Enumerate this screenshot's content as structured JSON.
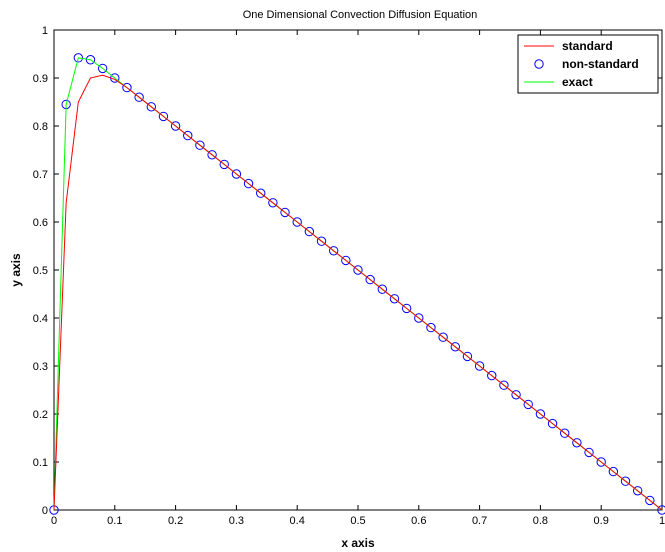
{
  "chart_data": {
    "type": "line",
    "title": "One Dimensional Convection Diffusion Equation",
    "xlabel": "x axis",
    "ylabel": "y axis",
    "xlim": [
      0,
      1
    ],
    "ylim": [
      0,
      1
    ],
    "xticks": [
      "0",
      "0.1",
      "0.2",
      "0.3",
      "0.4",
      "0.5",
      "0.6",
      "0.7",
      "0.8",
      "0.9",
      "1"
    ],
    "yticks": [
      "0",
      "0.1",
      "0.2",
      "0.3",
      "0.4",
      "0.5",
      "0.6",
      "0.7",
      "0.8",
      "0.9",
      "1"
    ],
    "grid": false,
    "legend_position": "top-right",
    "series": [
      {
        "name": "standard",
        "style": "line",
        "color": "#ff0000",
        "x": [
          0,
          0.02,
          0.04,
          0.06,
          0.08,
          0.1,
          0.12,
          0.14,
          0.16,
          0.18,
          0.2,
          0.22,
          0.24,
          0.26,
          0.28,
          0.3,
          0.32,
          0.34,
          0.36,
          0.38,
          0.4,
          0.42,
          0.44,
          0.46,
          0.48,
          0.5,
          0.52,
          0.54,
          0.56,
          0.58,
          0.6,
          0.62,
          0.64,
          0.66,
          0.68,
          0.7,
          0.72,
          0.74,
          0.76,
          0.78,
          0.8,
          0.82,
          0.84,
          0.86,
          0.88,
          0.9,
          0.92,
          0.94,
          0.96,
          0.98,
          1
        ],
        "y": [
          0,
          0.64,
          0.85,
          0.9,
          0.906,
          0.897,
          0.88,
          0.86,
          0.84,
          0.82,
          0.8,
          0.78,
          0.76,
          0.74,
          0.72,
          0.7,
          0.68,
          0.66,
          0.64,
          0.62,
          0.6,
          0.58,
          0.56,
          0.54,
          0.52,
          0.5,
          0.48,
          0.46,
          0.44,
          0.42,
          0.4,
          0.38,
          0.36,
          0.34,
          0.32,
          0.3,
          0.28,
          0.26,
          0.24,
          0.22,
          0.2,
          0.18,
          0.16,
          0.14,
          0.12,
          0.1,
          0.08,
          0.06,
          0.04,
          0.02,
          0
        ]
      },
      {
        "name": "non-standard",
        "style": "markers",
        "color": "#0000ff",
        "x": [
          0,
          0.02,
          0.04,
          0.06,
          0.08,
          0.1,
          0.12,
          0.14,
          0.16,
          0.18,
          0.2,
          0.22,
          0.24,
          0.26,
          0.28,
          0.3,
          0.32,
          0.34,
          0.36,
          0.38,
          0.4,
          0.42,
          0.44,
          0.46,
          0.48,
          0.5,
          0.52,
          0.54,
          0.56,
          0.58,
          0.6,
          0.62,
          0.64,
          0.66,
          0.68,
          0.7,
          0.72,
          0.74,
          0.76,
          0.78,
          0.8,
          0.82,
          0.84,
          0.86,
          0.88,
          0.9,
          0.92,
          0.94,
          0.96,
          0.98,
          1
        ],
        "y": [
          0,
          0.845,
          0.942,
          0.938,
          0.92,
          0.9,
          0.88,
          0.86,
          0.84,
          0.82,
          0.8,
          0.78,
          0.76,
          0.74,
          0.72,
          0.7,
          0.68,
          0.66,
          0.64,
          0.62,
          0.6,
          0.58,
          0.56,
          0.54,
          0.52,
          0.5,
          0.48,
          0.46,
          0.44,
          0.42,
          0.4,
          0.38,
          0.36,
          0.34,
          0.32,
          0.3,
          0.28,
          0.26,
          0.24,
          0.22,
          0.2,
          0.18,
          0.16,
          0.14,
          0.12,
          0.1,
          0.08,
          0.06,
          0.04,
          0.02,
          0
        ]
      },
      {
        "name": "exact",
        "style": "line",
        "color": "#00ff00",
        "x": [
          0,
          0.02,
          0.04,
          0.06,
          0.08,
          0.1,
          0.12,
          0.14,
          0.16,
          0.18,
          0.2,
          0.22,
          0.24,
          0.26,
          0.28,
          0.3,
          0.32,
          0.34,
          0.36,
          0.38,
          0.4,
          0.42,
          0.44,
          0.46,
          0.48,
          0.5,
          0.52,
          0.54,
          0.56,
          0.58,
          0.6,
          0.62,
          0.64,
          0.66,
          0.68,
          0.7,
          0.72,
          0.74,
          0.76,
          0.78,
          0.8,
          0.82,
          0.84,
          0.86,
          0.88,
          0.9,
          0.92,
          0.94,
          0.96,
          0.98,
          1
        ],
        "y": [
          0,
          0.845,
          0.942,
          0.938,
          0.92,
          0.9,
          0.88,
          0.86,
          0.84,
          0.82,
          0.8,
          0.78,
          0.76,
          0.74,
          0.72,
          0.7,
          0.68,
          0.66,
          0.64,
          0.62,
          0.6,
          0.58,
          0.56,
          0.54,
          0.52,
          0.5,
          0.48,
          0.46,
          0.44,
          0.42,
          0.4,
          0.38,
          0.36,
          0.34,
          0.32,
          0.3,
          0.28,
          0.26,
          0.24,
          0.22,
          0.2,
          0.18,
          0.16,
          0.14,
          0.12,
          0.1,
          0.08,
          0.06,
          0.04,
          0.02,
          0
        ]
      }
    ]
  }
}
